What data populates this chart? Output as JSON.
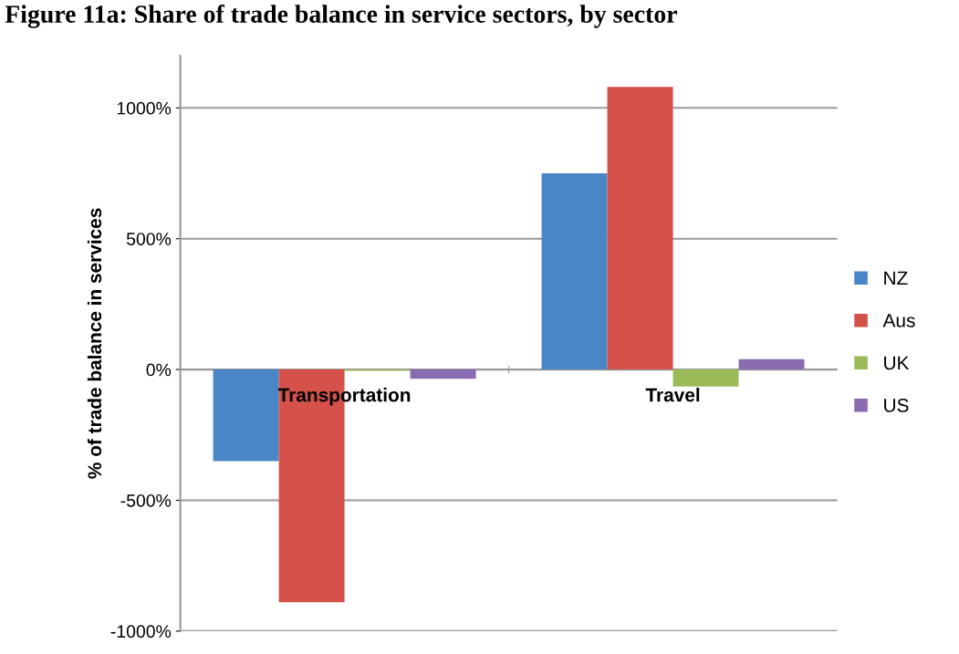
{
  "chart_data": {
    "type": "bar",
    "title": "Figure 11a: Share of trade balance in service sectors, by sector",
    "ylabel": "% of trade balance in services",
    "categories": [
      "Transportation",
      "Travel"
    ],
    "series": [
      {
        "name": "NZ",
        "color": "#4a86c5",
        "values": [
          -350,
          750
        ]
      },
      {
        "name": "Aus",
        "color": "#d4524a",
        "values": [
          -890,
          1080
        ]
      },
      {
        "name": "UK",
        "color": "#9bbb59",
        "values": [
          -5,
          -65
        ]
      },
      {
        "name": "US",
        "color": "#8a6bb0",
        "values": [
          -35,
          40
        ]
      }
    ],
    "ylim": [
      -1000,
      1200
    ],
    "yticks": [
      {
        "value": -1000,
        "label": "-1000%"
      },
      {
        "value": -500,
        "label": "-500%"
      },
      {
        "value": 0,
        "label": "0%"
      },
      {
        "value": 500,
        "label": "500%"
      },
      {
        "value": 1000,
        "label": "1000%"
      }
    ],
    "grid": "y",
    "legend": "right"
  }
}
